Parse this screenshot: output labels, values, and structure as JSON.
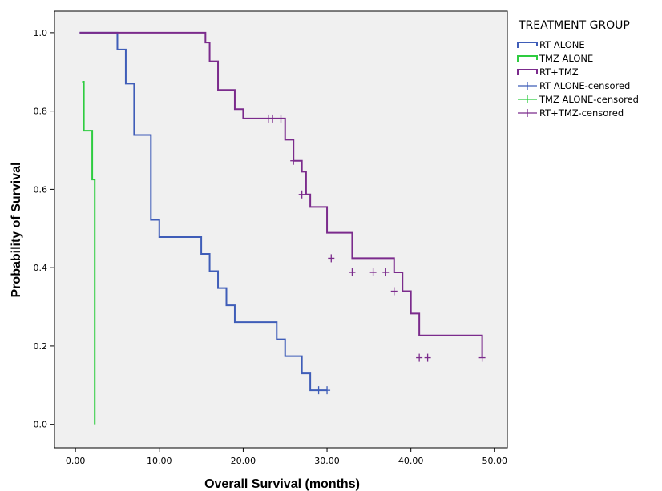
{
  "chart_data": {
    "type": "line",
    "step": true,
    "xlabel": "Overall Survival (months)",
    "ylabel": "Probability of Survival",
    "xlim": [
      -2.5,
      51.5
    ],
    "ylim": [
      -0.06,
      1.055
    ],
    "x_ticks": [
      0,
      10,
      20,
      30,
      40,
      50
    ],
    "x_tick_labels": [
      "0.00",
      "10.00",
      "20.00",
      "30.00",
      "40.00",
      "50.00"
    ],
    "y_ticks": [
      0.0,
      0.2,
      0.4,
      0.6,
      0.8,
      1.0
    ],
    "y_tick_labels": [
      "0.0",
      "0.2",
      "0.4",
      "0.6",
      "0.8",
      "1.0"
    ],
    "grid": false,
    "plot_background": "#f0f0f0",
    "legend": {
      "title": "TREATMENT GROUP",
      "position": "right",
      "entries": [
        {
          "label": "RT ALONE",
          "symbol": "step",
          "color": "#3f5db8"
        },
        {
          "label": "TMZ ALONE",
          "symbol": "step",
          "color": "#2ecc40"
        },
        {
          "label": "RT+TMZ",
          "symbol": "step",
          "color": "#7b2b8c"
        },
        {
          "label": "RT ALONE-censored",
          "symbol": "plus",
          "color": "#3f5db8"
        },
        {
          "label": "TMZ ALONE-censored",
          "symbol": "plus",
          "color": "#2ecc40"
        },
        {
          "label": "RT+TMZ-censored",
          "symbol": "plus",
          "color": "#7b2b8c"
        }
      ]
    },
    "series": [
      {
        "name": "RT ALONE",
        "color": "#3f5db8",
        "x": [
          0.5,
          5,
          6,
          7,
          9,
          10,
          15,
          16,
          17,
          18,
          19,
          24,
          25,
          27,
          28,
          30
        ],
        "y": [
          1.0,
          0.957,
          0.87,
          0.739,
          0.522,
          0.478,
          0.435,
          0.391,
          0.348,
          0.304,
          0.261,
          0.217,
          0.174,
          0.13,
          0.087,
          0.087
        ],
        "censored": [
          {
            "x": 29,
            "y": 0.087
          },
          {
            "x": 30,
            "y": 0.087
          }
        ]
      },
      {
        "name": "TMZ ALONE",
        "color": "#2ecc40",
        "x": [
          0.8,
          1,
          2,
          2.3
        ],
        "y": [
          0.875,
          0.75,
          0.625,
          0.375
        ],
        "end": {
          "x": 2.3,
          "y": 0.0
        },
        "censored": []
      },
      {
        "name": "RT+TMZ",
        "color": "#7b2b8c",
        "x": [
          0.5,
          15.5,
          16,
          17,
          19,
          20,
          25,
          26,
          27,
          27.5,
          28,
          30,
          33,
          38,
          39,
          40,
          41,
          48.5
        ],
        "y": [
          1.0,
          0.975,
          0.927,
          0.854,
          0.805,
          0.781,
          0.727,
          0.673,
          0.645,
          0.587,
          0.555,
          0.489,
          0.424,
          0.388,
          0.34,
          0.283,
          0.227,
          0.17
        ],
        "censored": [
          {
            "x": 23,
            "y": 0.781
          },
          {
            "x": 23.5,
            "y": 0.781
          },
          {
            "x": 24.5,
            "y": 0.781
          },
          {
            "x": 26,
            "y": 0.673
          },
          {
            "x": 27,
            "y": 0.587
          },
          {
            "x": 30.5,
            "y": 0.424
          },
          {
            "x": 33,
            "y": 0.388
          },
          {
            "x": 35.5,
            "y": 0.388
          },
          {
            "x": 37,
            "y": 0.388
          },
          {
            "x": 38,
            "y": 0.34
          },
          {
            "x": 41,
            "y": 0.17
          },
          {
            "x": 42,
            "y": 0.17
          },
          {
            "x": 48.5,
            "y": 0.17
          }
        ]
      }
    ]
  }
}
